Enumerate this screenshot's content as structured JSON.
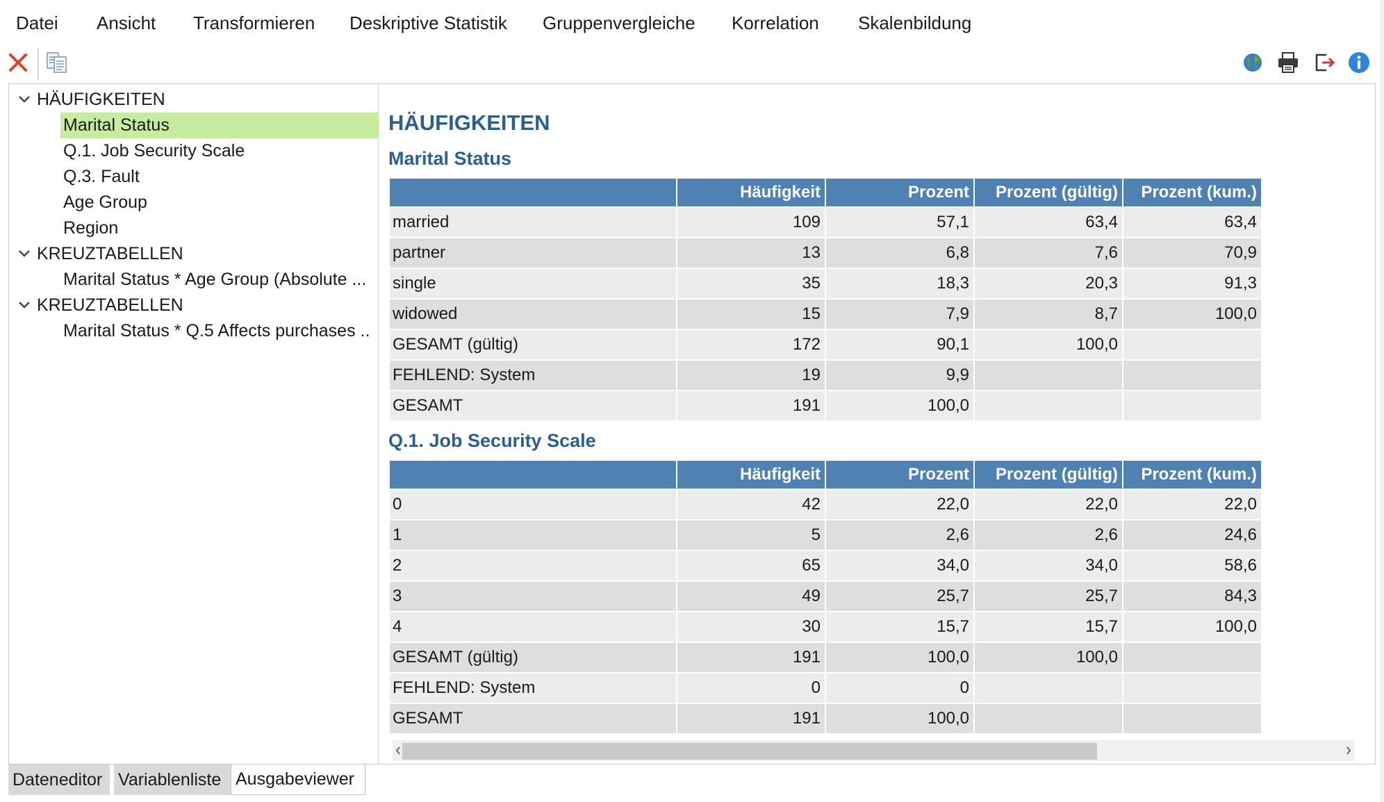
{
  "menu": {
    "items": [
      "Datei",
      "Ansicht",
      "Transformieren",
      "Deskriptive Statistik",
      "Gruppenvergleiche",
      "Korrelation",
      "Skalenbildung"
    ]
  },
  "toolbar": {
    "close_icon": "close-icon",
    "copy_icon": "copy-icon",
    "globe_icon": "globe-icon",
    "print_icon": "print-icon",
    "export_icon": "export-icon",
    "info_icon": "info-icon"
  },
  "tree": {
    "group1": "HÄUFIGKEITEN",
    "group1_items": [
      "Marital Status",
      "Q.1. Job Security Scale",
      "Q.3. Fault",
      "Age Group",
      "Region"
    ],
    "group2": "KREUZTABELLEN",
    "group2_items": [
      "Marital Status * Age Group (Absolute ..."
    ],
    "group3": "KREUZTABELLEN",
    "group3_items": [
      "Marital Status * Q.5 Affects purchases .."
    ]
  },
  "output": {
    "heading": "HÄUFIGKEITEN",
    "columns": [
      "",
      "Häufigkeit",
      "Prozent",
      "Prozent (gültig)",
      "Prozent (kum.)"
    ],
    "table1": {
      "title": "Marital Status",
      "rows": [
        [
          "married",
          "109",
          "57,1",
          "63,4",
          "63,4"
        ],
        [
          "partner",
          "13",
          "6,8",
          "7,6",
          "70,9"
        ],
        [
          "single",
          "35",
          "18,3",
          "20,3",
          "91,3"
        ],
        [
          "widowed",
          "15",
          "7,9",
          "8,7",
          "100,0"
        ],
        [
          "GESAMT (gültig)",
          "172",
          "90,1",
          "100,0",
          ""
        ],
        [
          "FEHLEND: System",
          "19",
          "9,9",
          "",
          ""
        ],
        [
          "GESAMT",
          "191",
          "100,0",
          "",
          ""
        ]
      ]
    },
    "table2": {
      "title": "Q.1. Job Security Scale",
      "rows": [
        [
          "0",
          "42",
          "22,0",
          "22,0",
          "22,0"
        ],
        [
          "1",
          "5",
          "2,6",
          "2,6",
          "24,6"
        ],
        [
          "2",
          "65",
          "34,0",
          "34,0",
          "58,6"
        ],
        [
          "3",
          "49",
          "25,7",
          "25,7",
          "84,3"
        ],
        [
          "4",
          "30",
          "15,7",
          "15,7",
          "100,0"
        ],
        [
          "GESAMT (gültig)",
          "191",
          "100,0",
          "100,0",
          ""
        ],
        [
          "FEHLEND: System",
          "0",
          "0",
          "",
          ""
        ],
        [
          "GESAMT",
          "191",
          "100,0",
          "",
          ""
        ]
      ]
    }
  },
  "tabs": [
    "Dateneditor",
    "Variablenliste",
    "Ausgabeviewer"
  ],
  "colors": {
    "accent": "#2a5f8e",
    "table_header": "#4f81b3",
    "selected_row": "#c6eca0",
    "close_red": "#e0402a"
  }
}
